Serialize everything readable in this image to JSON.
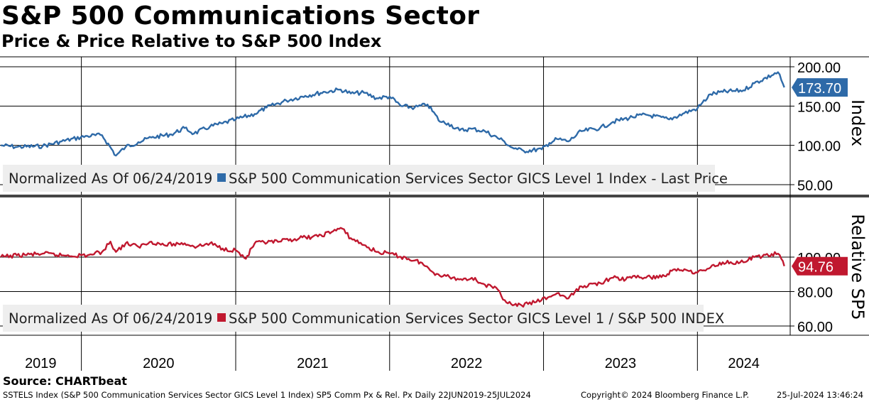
{
  "title": "S&P 500 Communications Sector",
  "subtitle": "Price & Price Relative to S&P 500 Index",
  "source": "Source: CHARTbeat",
  "footer": {
    "left": "SSTELS Index (S&P 500 Communication Services Sector GICS Level 1 Index) SP5 Comm Px & Rel. Px  Daily 22JUN2019-25JUL2024",
    "middle": "Copyright© 2024 Bloomberg Finance L.P.",
    "right": "25-Jul-2024 13:46:24"
  },
  "colors": {
    "price": "#2e6aa8",
    "relative": "#c0182f",
    "legend_bg": "#eeeeee"
  },
  "x_labels": [
    "2019",
    "2020",
    "2021",
    "2022",
    "2023",
    "2024"
  ],
  "chart_data": [
    {
      "type": "line",
      "ylabel": "Index",
      "ylim": [
        45,
        212
      ],
      "y_ticks": [
        "200.00",
        "150.00",
        "100.00",
        "50.00"
      ],
      "y_tick_values": [
        200,
        150,
        100,
        50
      ],
      "last_value_label": "173.70",
      "last_value": 173.7,
      "grid": true,
      "legend": {
        "prefix": "Normalized As Of 06/24/2019",
        "label": "S&P 500 Communication Services Sector GICS Level 1 Index - Last Price",
        "placement": "bottom-left"
      },
      "series": [
        {
          "name": "S&P 500 Communication Services Sector GICS Level 1 Index - Last Price",
          "x": [
            "2019-06-24",
            "2019-08-01",
            "2019-10-01",
            "2019-11-15",
            "2020-01-15",
            "2020-02-19",
            "2020-03-23",
            "2020-04-15",
            "2020-05-15",
            "2020-06-15",
            "2020-08-01",
            "2020-09-02",
            "2020-09-24",
            "2020-11-01",
            "2020-12-01",
            "2021-01-01",
            "2021-02-15",
            "2021-03-15",
            "2021-05-01",
            "2021-06-15",
            "2021-08-01",
            "2021-09-07",
            "2021-10-01",
            "2021-11-01",
            "2021-12-01",
            "2022-01-01",
            "2022-01-28",
            "2022-03-01",
            "2022-04-01",
            "2022-05-01",
            "2022-05-20",
            "2022-06-16",
            "2022-07-15",
            "2022-08-15",
            "2022-09-30",
            "2022-10-15",
            "2022-10-31",
            "2022-11-15",
            "2022-12-28",
            "2023-01-15",
            "2023-02-02",
            "2023-03-01",
            "2023-04-01",
            "2023-05-15",
            "2023-06-15",
            "2023-07-31",
            "2023-09-01",
            "2023-10-26",
            "2023-12-01",
            "2024-01-01",
            "2024-02-01",
            "2024-03-01",
            "2024-04-19",
            "2024-05-15",
            "2024-07-10",
            "2024-07-18",
            "2024-07-25"
          ],
          "values": [
            100,
            98,
            99,
            105,
            112,
            113,
            87,
            98,
            104,
            110,
            114,
            122,
            115,
            124,
            128,
            133,
            140,
            148,
            157,
            163,
            168,
            171,
            166,
            167,
            160,
            162,
            150,
            148,
            152,
            130,
            128,
            119,
            121,
            118,
            105,
            98,
            95,
            93,
            95,
            103,
            108,
            105,
            118,
            122,
            130,
            136,
            139,
            133,
            141,
            147,
            165,
            168,
            170,
            179,
            193,
            183,
            173.7
          ]
        }
      ]
    },
    {
      "type": "line",
      "ylabel": "Relative SP5",
      "ylim": [
        57,
        126
      ],
      "y_ticks": [
        "100.00",
        "80.00",
        "60.00"
      ],
      "y_tick_values": [
        100,
        80,
        60
      ],
      "last_value_label": "94.76",
      "last_value": 94.76,
      "grid": true,
      "legend": {
        "prefix": "Normalized As Of 06/24/2019",
        "label": "S&P 500 Communication Services Sector GICS Level 1 / S&P 500 INDEX",
        "placement": "bottom-left"
      },
      "series": [
        {
          "name": "S&P 500 Communication Services Sector GICS Level 1 / S&P 500 INDEX",
          "x": [
            "2019-06-24",
            "2019-08-01",
            "2019-10-01",
            "2019-11-15",
            "2020-01-15",
            "2020-02-19",
            "2020-03-10",
            "2020-03-23",
            "2020-04-15",
            "2020-05-15",
            "2020-06-15",
            "2020-07-15",
            "2020-09-02",
            "2020-10-01",
            "2020-11-01",
            "2020-12-01",
            "2021-01-01",
            "2021-01-25",
            "2021-02-15",
            "2021-04-15",
            "2021-06-01",
            "2021-07-15",
            "2021-08-20",
            "2021-09-07",
            "2021-10-01",
            "2021-11-01",
            "2021-12-01",
            "2022-01-01",
            "2022-02-15",
            "2022-03-15",
            "2022-04-15",
            "2022-05-15",
            "2022-06-15",
            "2022-07-15",
            "2022-08-15",
            "2022-09-15",
            "2022-10-01",
            "2022-10-20",
            "2022-11-10",
            "2022-12-15",
            "2023-01-15",
            "2023-02-02",
            "2023-03-01",
            "2023-04-01",
            "2023-05-15",
            "2023-06-15",
            "2023-07-15",
            "2023-08-01",
            "2023-09-01",
            "2023-10-15",
            "2023-11-01",
            "2023-12-01",
            "2024-01-01",
            "2024-02-01",
            "2024-03-01",
            "2024-04-19",
            "2024-05-15",
            "2024-07-10",
            "2024-07-18",
            "2024-07-25"
          ],
          "values": [
            100,
            101,
            102,
            101,
            101,
            103,
            109,
            103,
            108,
            106,
            109,
            107,
            108,
            106,
            108,
            105,
            104,
            99,
            108,
            109,
            111,
            112,
            115,
            117,
            111,
            107,
            103,
            102,
            99,
            97,
            91,
            89,
            87,
            88,
            84,
            81,
            75,
            72,
            72,
            74,
            77,
            79,
            76,
            83,
            85,
            88,
            87,
            89,
            88,
            89,
            92,
            93,
            91,
            94,
            97,
            97,
            100,
            102,
            99,
            94.76
          ]
        }
      ]
    }
  ]
}
